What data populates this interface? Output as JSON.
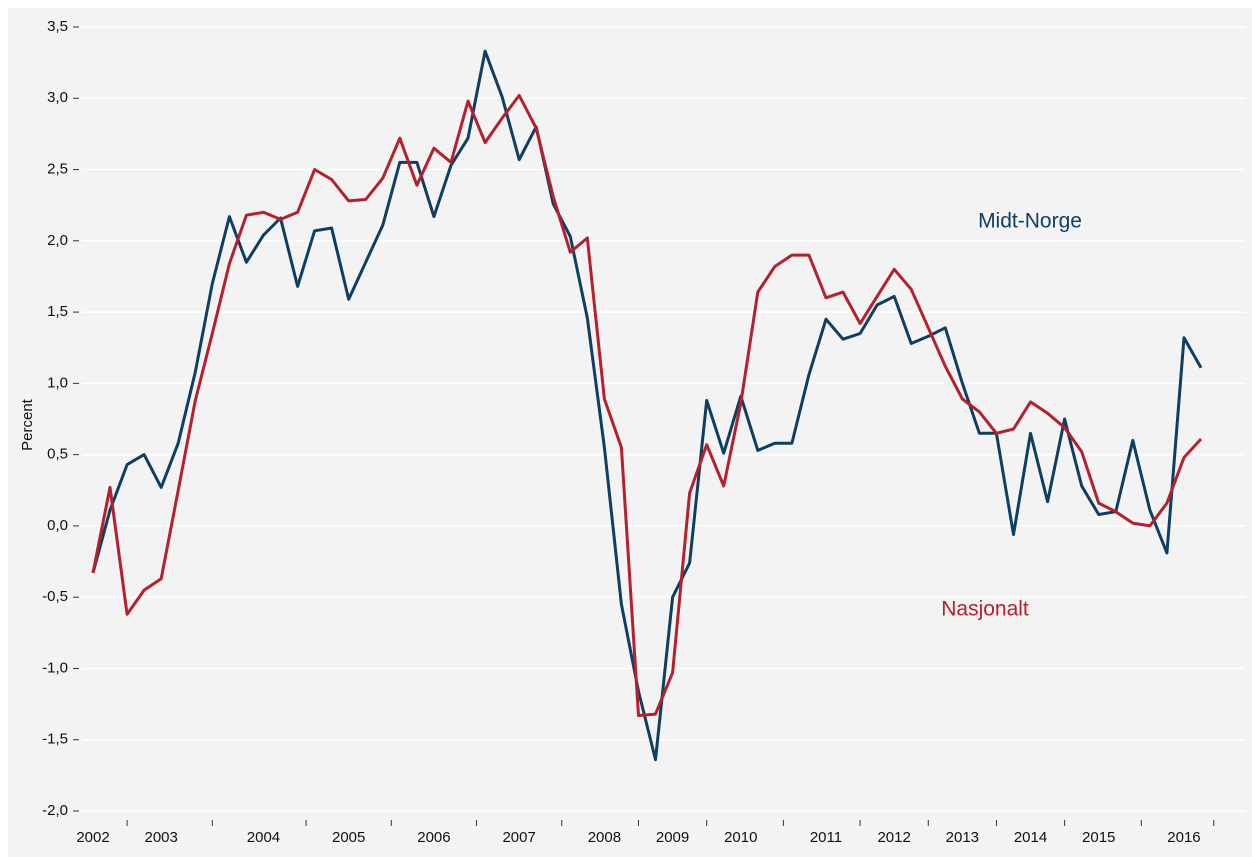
{
  "chart_data": {
    "type": "line",
    "y_label": "Percent",
    "categories": [
      "2002",
      null,
      null,
      null,
      "2003",
      null,
      null,
      null,
      null,
      null,
      "2004",
      null,
      null,
      null,
      null,
      "2005",
      null,
      null,
      null,
      null,
      "2006",
      null,
      null,
      null,
      null,
      "2007",
      null,
      null,
      null,
      null,
      "2008",
      null,
      null,
      null,
      "2009",
      null,
      null,
      null,
      "2010",
      null,
      null,
      null,
      null,
      "2011",
      null,
      null,
      null,
      "2012",
      null,
      null,
      null,
      "2013",
      null,
      null,
      null,
      "2014",
      null,
      null,
      null,
      "2015",
      null,
      null,
      null,
      null,
      "2016",
      null
    ],
    "series": [
      {
        "name": "Midt-Norge",
        "color": "#0d3f63",
        "values": [
          -0.33,
          0.11,
          0.43,
          0.5,
          0.27,
          0.58,
          1.08,
          1.7,
          2.17,
          1.85,
          2.04,
          2.16,
          1.68,
          2.07,
          2.09,
          1.59,
          1.85,
          2.11,
          2.55,
          2.55,
          2.17,
          2.53,
          2.72,
          3.33,
          3.01,
          2.57,
          2.8,
          2.26,
          2.03,
          1.46,
          0.55,
          -0.55,
          -1.16,
          -1.64,
          -0.5,
          -0.26,
          0.88,
          0.51,
          0.91,
          0.53,
          0.58,
          0.58,
          1.06,
          1.45,
          1.31,
          1.35,
          1.55,
          1.61,
          1.28,
          1.33,
          1.39,
          1.0,
          0.65,
          0.65,
          -0.06,
          0.65,
          0.17,
          0.75,
          0.28,
          0.08,
          0.1,
          0.6,
          0.11,
          -0.19,
          1.32,
          1.11
        ]
      },
      {
        "name": "Nasjonalt",
        "color": "#b5202e",
        "values": [
          -0.33,
          0.27,
          -0.62,
          -0.45,
          -0.37,
          0.25,
          0.88,
          1.35,
          1.84,
          2.18,
          2.2,
          2.15,
          2.2,
          2.5,
          2.43,
          2.28,
          2.29,
          2.44,
          2.72,
          2.39,
          2.65,
          2.55,
          2.98,
          2.69,
          2.86,
          3.02,
          2.79,
          2.31,
          1.92,
          2.02,
          0.89,
          0.55,
          -1.33,
          -1.32,
          -1.03,
          0.23,
          0.57,
          0.28,
          0.86,
          1.64,
          1.82,
          1.9,
          1.9,
          1.6,
          1.64,
          1.42,
          1.61,
          1.8,
          1.66,
          1.39,
          1.12,
          0.89,
          0.8,
          0.65,
          0.68,
          0.87,
          0.79,
          0.69,
          0.52,
          0.16,
          0.1,
          0.02,
          0.0,
          0.16,
          0.48,
          0.61
        ]
      }
    ],
    "ylim": [
      -2.0,
      3.5
    ],
    "yticks": [
      {
        "value": -2.0,
        "label": "-2,0"
      },
      {
        "value": -1.5,
        "label": "-1,5"
      },
      {
        "value": -1.0,
        "label": "-1,0"
      },
      {
        "value": -0.5,
        "label": "-0,5"
      },
      {
        "value": 0.0,
        "label": "0,0"
      },
      {
        "value": 0.5,
        "label": "0,5"
      },
      {
        "value": 1.0,
        "label": "1,0"
      },
      {
        "value": 1.5,
        "label": "1,5"
      },
      {
        "value": 2.0,
        "label": "2,0"
      },
      {
        "value": 2.5,
        "label": "2,5"
      },
      {
        "value": 3.0,
        "label": "3,0"
      },
      {
        "value": 3.5,
        "label": "3,5"
      }
    ],
    "grid": true
  }
}
